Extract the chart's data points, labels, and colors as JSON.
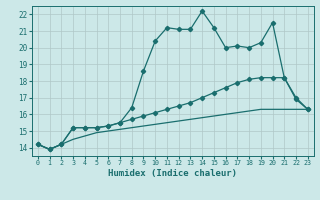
{
  "bg_color": "#cce8e8",
  "grid_color": "#b0c8c8",
  "line_color": "#1a6e6e",
  "xlabel": "Humidex (Indice chaleur)",
  "xlim": [
    -0.5,
    23.5
  ],
  "ylim": [
    13.5,
    22.5
  ],
  "xticks": [
    0,
    1,
    2,
    3,
    4,
    5,
    6,
    7,
    8,
    9,
    10,
    11,
    12,
    13,
    14,
    15,
    16,
    17,
    18,
    19,
    20,
    21,
    22,
    23
  ],
  "yticks": [
    14,
    15,
    16,
    17,
    18,
    19,
    20,
    21,
    22
  ],
  "curve1_x": [
    0,
    1,
    2,
    3,
    4,
    5,
    6,
    7,
    8,
    9,
    10,
    11,
    12,
    13,
    14,
    15,
    16,
    17,
    18,
    19,
    20,
    21,
    22,
    23
  ],
  "curve1_y": [
    14.2,
    13.9,
    14.2,
    15.2,
    15.2,
    15.2,
    15.3,
    15.5,
    16.4,
    18.6,
    20.4,
    21.2,
    21.1,
    21.1,
    22.2,
    21.2,
    20.0,
    20.1,
    20.0,
    20.3,
    21.5,
    18.2,
    17.0,
    16.3
  ],
  "curve2_x": [
    0,
    1,
    2,
    3,
    4,
    5,
    6,
    7,
    8,
    9,
    10,
    11,
    12,
    13,
    14,
    15,
    16,
    17,
    18,
    19,
    20,
    21,
    22,
    23
  ],
  "curve2_y": [
    14.2,
    13.9,
    14.2,
    15.2,
    15.2,
    15.2,
    15.3,
    15.5,
    15.7,
    15.9,
    16.1,
    16.3,
    16.5,
    16.7,
    17.0,
    17.3,
    17.6,
    17.9,
    18.1,
    18.2,
    18.2,
    18.2,
    16.9,
    16.3
  ],
  "curve3_x": [
    0,
    1,
    2,
    3,
    4,
    5,
    6,
    7,
    8,
    9,
    10,
    11,
    12,
    13,
    14,
    15,
    16,
    17,
    18,
    19,
    20,
    21,
    22,
    23
  ],
  "curve3_y": [
    14.2,
    13.9,
    14.2,
    14.5,
    14.7,
    14.9,
    15.0,
    15.1,
    15.2,
    15.3,
    15.4,
    15.5,
    15.6,
    15.7,
    15.8,
    15.9,
    16.0,
    16.1,
    16.2,
    16.3,
    16.3,
    16.3,
    16.3,
    16.3
  ]
}
